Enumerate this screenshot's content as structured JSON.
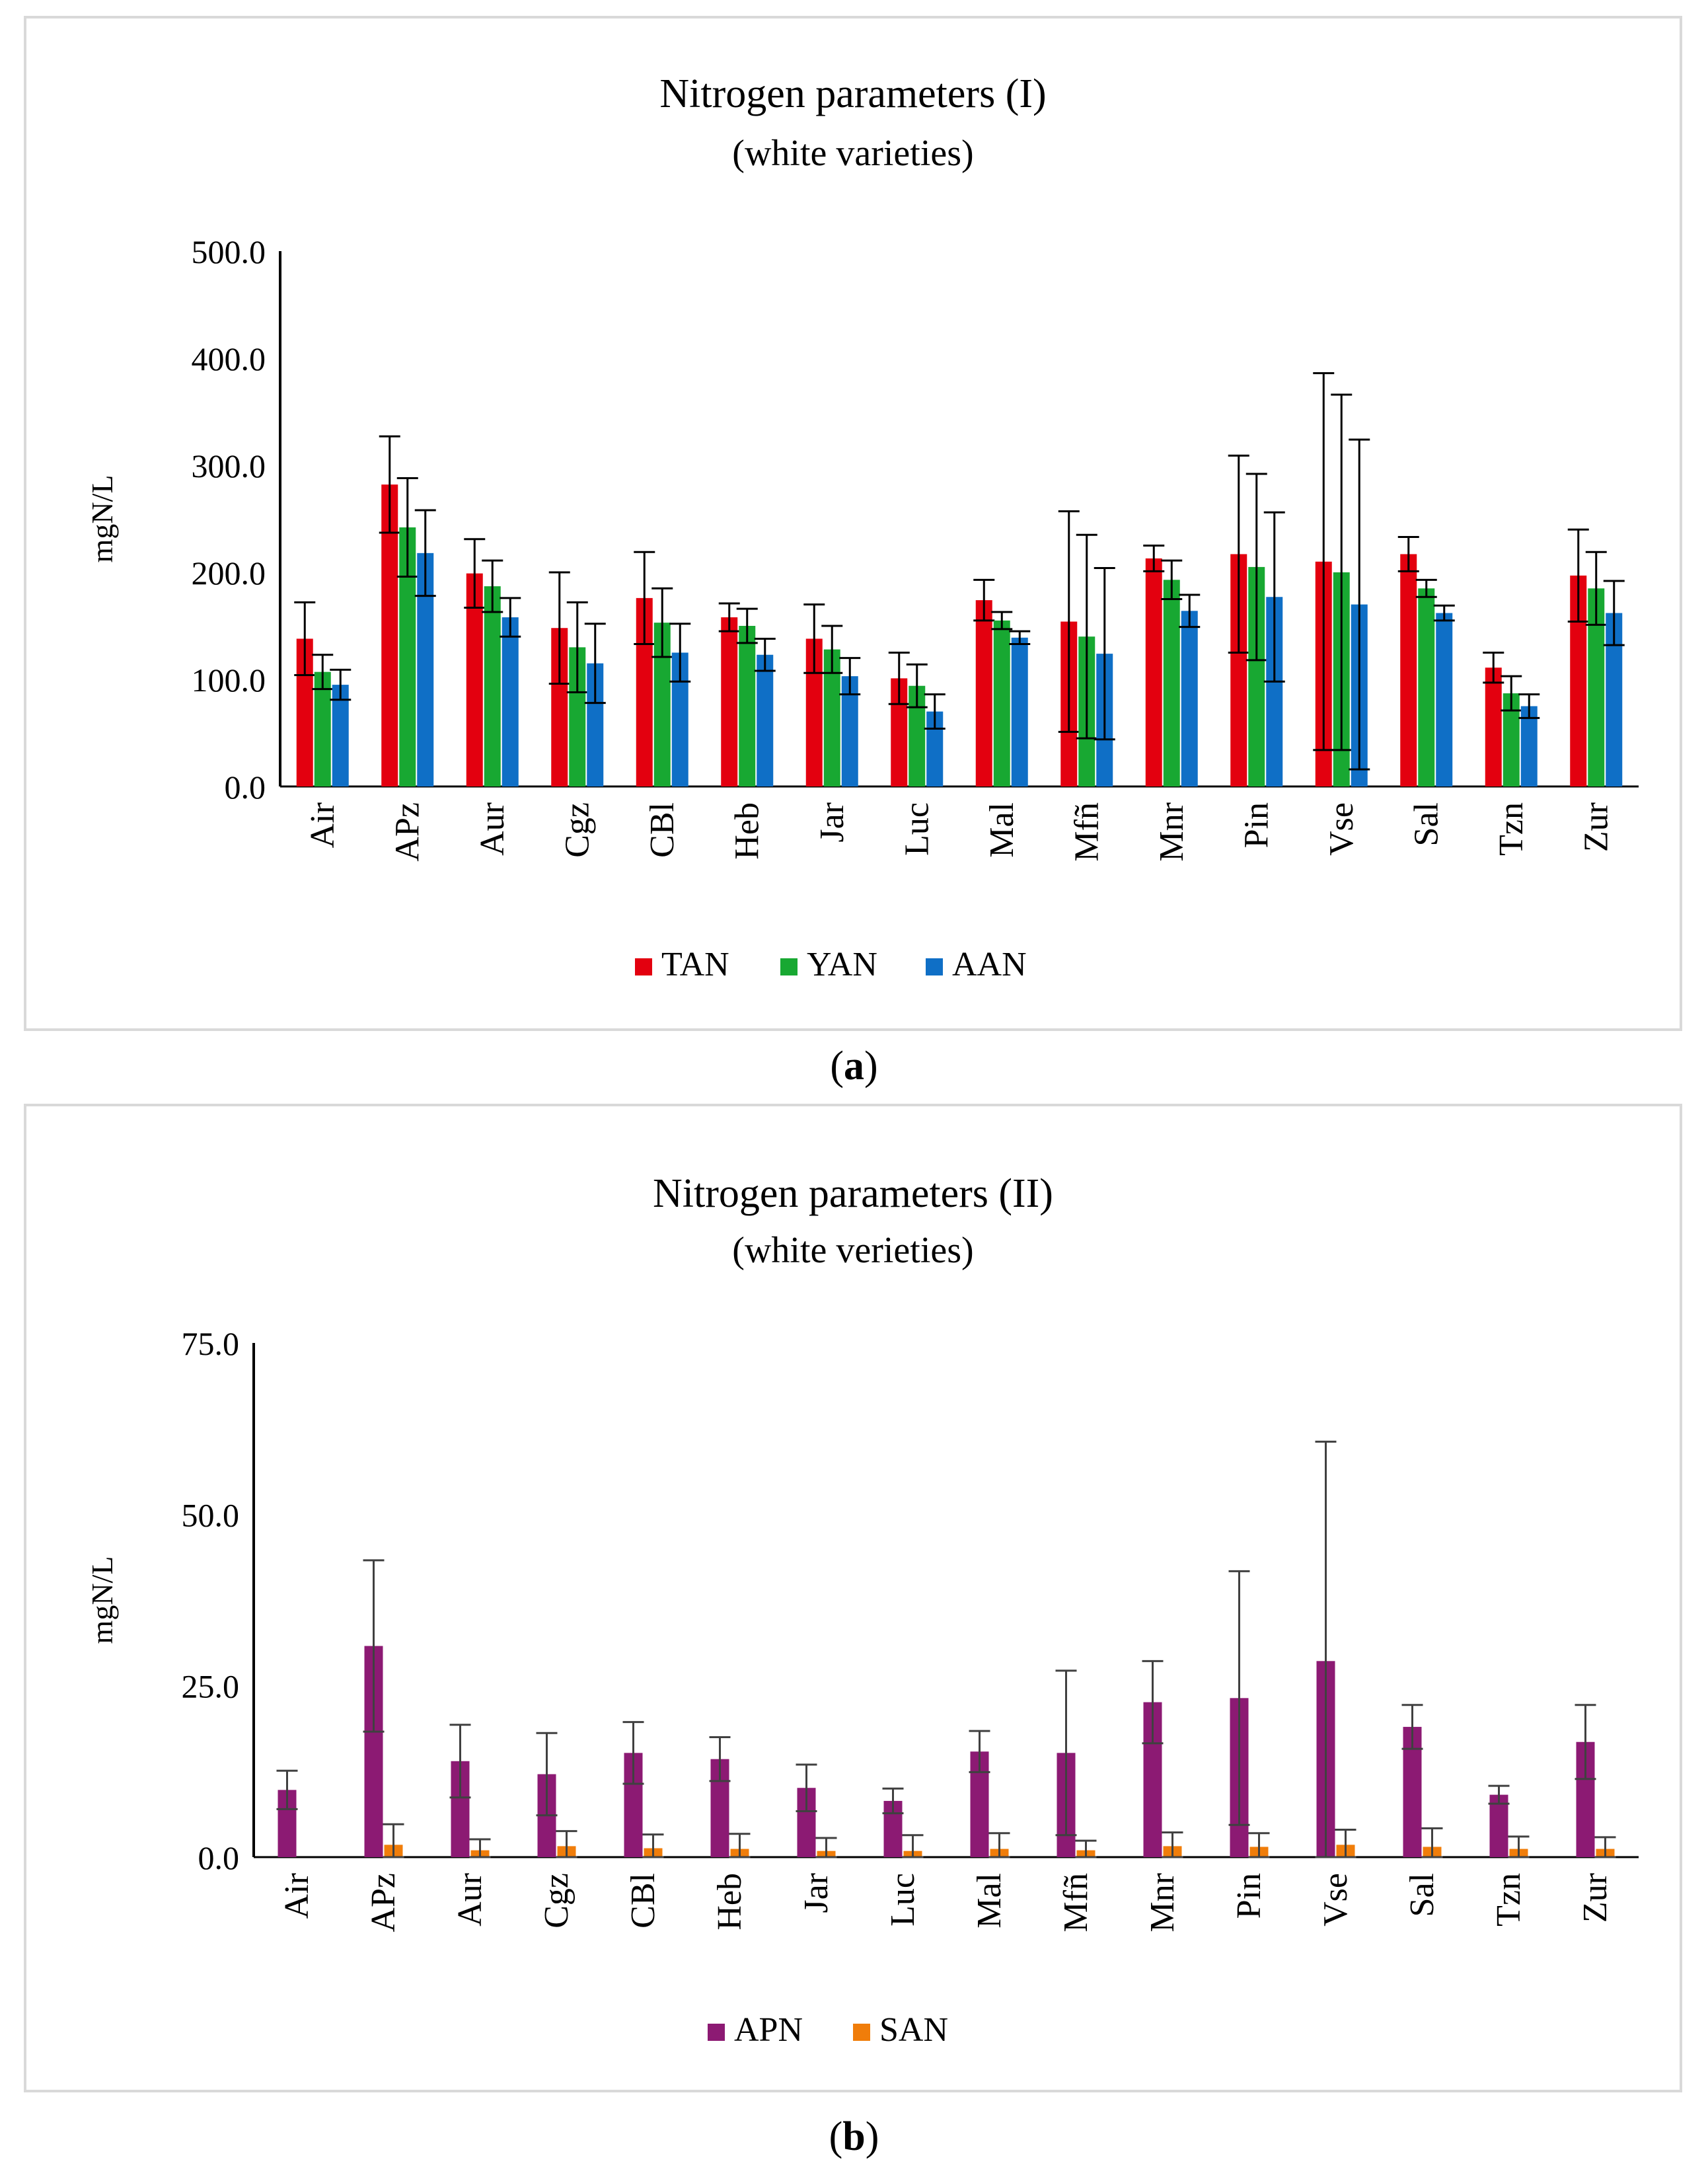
{
  "charts": [
    {
      "caption": "a",
      "chart_data": {
        "type": "bar",
        "title": "Nitrogen parameters (I)",
        "subtitle": "(white varieties)",
        "ylabel": "mgN/L",
        "ylim": [
          0,
          500
        ],
        "yticks": [
          "0.0",
          "100.0",
          "200.0",
          "300.0",
          "400.0",
          "500.0"
        ],
        "categories": [
          "Air",
          "APz",
          "Aur",
          "Cgz",
          "CBl",
          "Heb",
          "Jar",
          "Luc",
          "Mal",
          "Mfñ",
          "Mnr",
          "Pin",
          "Vse",
          "Sal",
          "Tzn",
          "Zur"
        ],
        "series": [
          {
            "name": "TAN",
            "color": "#e3000f",
            "values": [
              138,
              282,
              199,
              148,
              176,
              158,
              138,
              101,
              174,
              154,
              213,
              217,
              210,
              217,
              111,
              197
            ],
            "errors": [
              34,
              45,
              32,
              52,
              43,
              13,
              32,
              24,
              19,
              103,
              12,
              92,
              176,
              16,
              14,
              43
            ]
          },
          {
            "name": "YAN",
            "color": "#18a832",
            "values": [
              107,
              242,
              187,
              130,
              153,
              150,
              128,
              94,
              155,
              140,
              193,
              205,
              200,
              185,
              87,
              185
            ],
            "errors": [
              16,
              46,
              24,
              42,
              32,
              16,
              22,
              20,
              8,
              95,
              18,
              87,
              166,
              8,
              16,
              34
            ]
          },
          {
            "name": "AAN",
            "color": "#0f6fc6",
            "values": [
              95,
              218,
              158,
              115,
              125,
              123,
              103,
              70,
              139,
              124,
              164,
              177,
              170,
              162,
              75,
              162
            ],
            "errors": [
              14,
              40,
              18,
              37,
              27,
              15,
              17,
              16,
              6,
              80,
              15,
              79,
              154,
              7,
              11,
              30
            ]
          }
        ],
        "legend": "bottom-center",
        "grid": false
      }
    },
    {
      "caption": "b",
      "chart_data": {
        "type": "bar",
        "title": "Nitrogen parameters (II)",
        "subtitle": "(white verieties)",
        "ylabel": "mgN/L",
        "ylim": [
          0,
          75
        ],
        "yticks": [
          "0.0",
          "25.0",
          "50.0",
          "75.0"
        ],
        "categories": [
          "Air",
          "APz",
          "Aur",
          "Cgz",
          "CBl",
          "Heb",
          "Jar",
          "Luc",
          "Mal",
          "Mfñ",
          "Mnr",
          "Pin",
          "Vse",
          "Sal",
          "Tzn",
          "Zur"
        ],
        "series": [
          {
            "name": "APN",
            "color": "#8c1a73",
            "values": [
              9.8,
              30.8,
              14.0,
              12.1,
              15.2,
              14.3,
              10.1,
              8.2,
              15.4,
              15.2,
              22.6,
              23.2,
              28.6,
              19.0,
              9.1,
              16.8
            ],
            "errors": [
              2.8,
              12.5,
              5.3,
              6.0,
              4.5,
              3.2,
              3.4,
              1.8,
              3.0,
              12.0,
              6.0,
              18.5,
              32.0,
              3.2,
              1.3,
              5.4
            ]
          },
          {
            "name": "SAN",
            "color": "#f07d0a",
            "values": [
              0,
              1.8,
              1.0,
              1.6,
              1.3,
              1.2,
              0.9,
              0.9,
              1.2,
              1.0,
              1.6,
              1.5,
              1.8,
              1.5,
              1.2,
              1.2
            ],
            "errors": [
              0,
              3.0,
              1.6,
              2.2,
              2.0,
              2.2,
              1.9,
              2.3,
              2.3,
              1.4,
              2.0,
              2.0,
              2.2,
              2.7,
              1.8,
              1.7
            ]
          }
        ],
        "legend": "bottom-center",
        "grid": false
      }
    }
  ]
}
